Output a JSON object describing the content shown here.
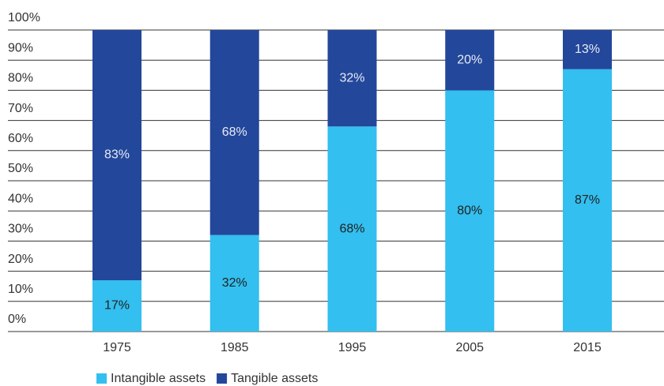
{
  "chart_data": {
    "type": "stacked-bar",
    "categories": [
      "1975",
      "1985",
      "1995",
      "2005",
      "2015"
    ],
    "series": [
      {
        "name": "Intangible assets",
        "color": "#33bfef",
        "values": [
          17,
          32,
          68,
          80,
          87
        ],
        "value_labels": [
          "17%",
          "32%",
          "68%",
          "80%",
          "87%"
        ]
      },
      {
        "name": "Tangible assets",
        "color": "#23479a",
        "values": [
          83,
          68,
          32,
          20,
          13
        ],
        "value_labels": [
          "83%",
          "68%",
          "32%",
          "20%",
          "13%"
        ]
      }
    ],
    "ylim": [
      0,
      100
    ],
    "yticks": [
      {
        "value": 0,
        "label": "0%"
      },
      {
        "value": 10,
        "label": "10%"
      },
      {
        "value": 20,
        "label": "20%"
      },
      {
        "value": 30,
        "label": "30%"
      },
      {
        "value": 40,
        "label": "40%"
      },
      {
        "value": 50,
        "label": "50%"
      },
      {
        "value": 60,
        "label": "60%"
      },
      {
        "value": 70,
        "label": "70%"
      },
      {
        "value": 80,
        "label": "80%"
      },
      {
        "value": 90,
        "label": "90%"
      },
      {
        "value": 100,
        "label": "100%"
      }
    ],
    "grid": true
  }
}
